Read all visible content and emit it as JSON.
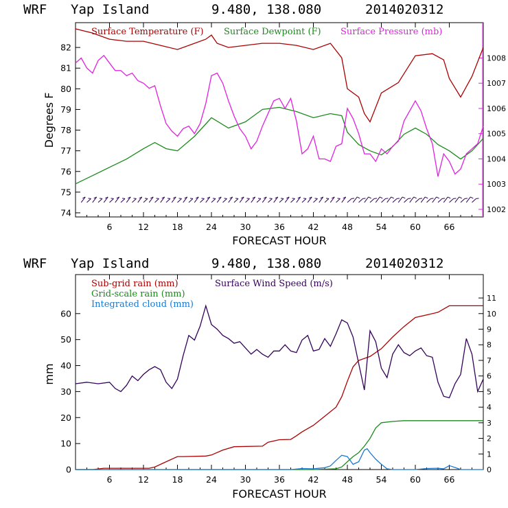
{
  "colors": {
    "temperature": "#aa0000",
    "dewpoint": "#1a8a1a",
    "pressure": "#e020e0",
    "wind": "#33005a",
    "subgrid": "#aa0000",
    "gridscale": "#1a8a1a",
    "cloud": "#1a78d0"
  },
  "chart_data": [
    {
      "type": "line",
      "title": {
        "model": "WRF",
        "location": "Yap Island",
        "coords": "9.480, 138.080",
        "date": "2014020312"
      },
      "xlabel": "FORECAST HOUR",
      "ylabel": "Degrees F",
      "x_ticks": [
        "6",
        "12",
        "18",
        "24",
        "30",
        "36",
        "42",
        "48",
        "54",
        "60",
        "66"
      ],
      "xlim": [
        0,
        72
      ],
      "y_ticks": [
        "74",
        "75",
        "76",
        "77",
        "78",
        "79",
        "80",
        "81",
        "82"
      ],
      "ylim": [
        73.8,
        83.2
      ],
      "y2_ticks": [
        "1002",
        "1003",
        "1004",
        "1005",
        "1006",
        "1007",
        "1008"
      ],
      "y2lim": [
        1001.7,
        1009.4
      ],
      "legend": [
        {
          "label": "Surface Temperature (F)",
          "color_key": "temperature"
        },
        {
          "label": "Surface Dewpoint (F)",
          "color_key": "dewpoint"
        },
        {
          "label": "Surface Pressure (mb)",
          "color_key": "pressure"
        }
      ],
      "series": [
        {
          "name": "Surface Temperature (F)",
          "axis": "left",
          "color_key": "temperature",
          "x": [
            0,
            3,
            6,
            9,
            12,
            15,
            18,
            21,
            23,
            24,
            25,
            27,
            30,
            33,
            36,
            39,
            42,
            45,
            47,
            48,
            50,
            51,
            52,
            54,
            57,
            60,
            63,
            65,
            66,
            68,
            70,
            72
          ],
          "y": [
            82.9,
            82.7,
            82.4,
            82.3,
            82.3,
            82.1,
            81.9,
            82.2,
            82.4,
            82.6,
            82.2,
            82.0,
            82.1,
            82.2,
            82.2,
            82.1,
            81.9,
            82.2,
            81.5,
            80.0,
            79.6,
            78.8,
            78.4,
            79.8,
            80.3,
            81.6,
            81.7,
            81.4,
            80.5,
            79.6,
            80.6,
            82.0
          ]
        },
        {
          "name": "Surface Dewpoint (F)",
          "axis": "left",
          "color_key": "dewpoint",
          "x": [
            0,
            3,
            6,
            9,
            12,
            14,
            16,
            18,
            21,
            24,
            27,
            30,
            33,
            36,
            39,
            42,
            45,
            47,
            48,
            50,
            52,
            54,
            56,
            58,
            60,
            62,
            64,
            66,
            68,
            70,
            72
          ],
          "y": [
            75.4,
            75.8,
            76.2,
            76.6,
            77.1,
            77.4,
            77.1,
            77.0,
            77.7,
            78.6,
            78.1,
            78.4,
            79.0,
            79.1,
            78.9,
            78.6,
            78.8,
            78.7,
            77.9,
            77.3,
            77.0,
            76.8,
            77.2,
            77.8,
            78.1,
            77.8,
            77.3,
            77.0,
            76.6,
            77.0,
            77.6
          ]
        },
        {
          "name": "Surface Pressure (mb)",
          "axis": "right",
          "color_key": "pressure",
          "x": [
            0,
            1,
            2,
            3,
            4,
            5,
            6,
            7,
            8,
            9,
            10,
            11,
            12,
            13,
            14,
            15,
            16,
            17,
            18,
            19,
            20,
            21,
            22,
            23,
            24,
            25,
            26,
            27,
            28,
            29,
            30,
            31,
            32,
            33,
            34,
            35,
            36,
            37,
            38,
            39,
            40,
            41,
            42,
            43,
            44,
            45,
            46,
            47,
            48,
            49,
            50,
            51,
            52,
            53,
            54,
            55,
            56,
            57,
            58,
            59,
            60,
            61,
            62,
            63,
            64,
            65,
            66,
            67,
            68,
            69,
            70,
            71,
            72
          ],
          "y": [
            1007.8,
            1008.0,
            1007.6,
            1007.4,
            1007.9,
            1008.1,
            1007.8,
            1007.5,
            1007.5,
            1007.3,
            1007.4,
            1007.1,
            1007.0,
            1006.8,
            1006.9,
            1006.1,
            1005.4,
            1005.1,
            1004.9,
            1005.2,
            1005.3,
            1005.0,
            1005.4,
            1006.2,
            1007.3,
            1007.4,
            1007.0,
            1006.3,
            1005.7,
            1005.2,
            1004.9,
            1004.4,
            1004.7,
            1005.3,
            1005.8,
            1006.3,
            1006.4,
            1006.0,
            1006.4,
            1005.5,
            1004.2,
            1004.4,
            1004.9,
            1004.0,
            1004.0,
            1003.9,
            1004.5,
            1004.6,
            1006.0,
            1005.6,
            1005.0,
            1004.2,
            1004.2,
            1003.9,
            1004.4,
            1004.2,
            1004.5,
            1004.7,
            1005.5,
            1005.9,
            1006.3,
            1005.9,
            1005.2,
            1004.6,
            1003.3,
            1004.2,
            1003.9,
            1003.4,
            1003.6,
            1004.2,
            1004.4,
            1004.6,
            1005.3
          ]
        }
      ],
      "wind_barbs": "along 74.5 line"
    },
    {
      "type": "line",
      "title": {
        "model": "WRF",
        "location": "Yap Island",
        "coords": "9.480, 138.080",
        "date": "2014020312"
      },
      "xlabel": "FORECAST HOUR",
      "ylabel": "mm",
      "x_ticks": [
        "6",
        "12",
        "18",
        "24",
        "30",
        "36",
        "42",
        "48",
        "54",
        "60",
        "66"
      ],
      "xlim": [
        0,
        72
      ],
      "y_ticks": [
        "0",
        "10",
        "20",
        "30",
        "40",
        "50",
        "60"
      ],
      "ylim": [
        0,
        75
      ],
      "y2_ticks": [
        "0",
        "1",
        "2",
        "3",
        "4",
        "5",
        "6",
        "7",
        "8",
        "9",
        "10",
        "11"
      ],
      "y2lim": [
        0,
        12.5
      ],
      "legend": [
        {
          "label": "Sub-grid rain (mm)",
          "color_key": "subgrid"
        },
        {
          "label": "Grid-scale rain (mm)",
          "color_key": "gridscale"
        },
        {
          "label": "Integrated cloud (mm)",
          "color_key": "cloud"
        },
        {
          "label": "Surface Wind Speed (m/s)",
          "color_key": "wind"
        }
      ],
      "series": [
        {
          "name": "Sub-grid rain (mm)",
          "axis": "left",
          "color_key": "subgrid",
          "x": [
            0,
            3,
            5,
            13,
            14,
            16,
            18,
            19,
            23,
            24,
            26,
            28,
            33,
            34,
            36,
            38,
            39,
            40,
            42,
            44,
            46,
            47,
            48,
            49,
            50,
            52,
            54,
            56,
            58,
            60,
            62,
            64,
            66,
            68,
            72
          ],
          "y": [
            0,
            0,
            0.5,
            0.5,
            1.0,
            3.0,
            5.0,
            5.0,
            5.2,
            5.6,
            7.5,
            8.8,
            9.0,
            10.5,
            11.5,
            11.6,
            13.0,
            14.5,
            17.0,
            20.5,
            24.0,
            28.0,
            34.0,
            39.5,
            42.0,
            43.5,
            46.5,
            51.0,
            55.0,
            58.5,
            59.5,
            60.5,
            63.0,
            63.0,
            63.0
          ]
        },
        {
          "name": "Grid-scale rain (mm)",
          "axis": "left",
          "color_key": "gridscale",
          "x": [
            0,
            42,
            46,
            47,
            48,
            49,
            50,
            51,
            52,
            53,
            54,
            56,
            58,
            60,
            72
          ],
          "y": [
            0,
            0,
            0.3,
            1.0,
            3.0,
            5.0,
            6.5,
            9.0,
            12.0,
            16.0,
            18.0,
            18.5,
            18.8,
            18.8,
            18.8
          ]
        },
        {
          "name": "Integrated cloud (mm)",
          "axis": "left",
          "color_key": "cloud",
          "x": [
            0,
            38,
            40,
            42,
            44,
            45,
            46,
            47,
            48,
            49,
            50,
            51,
            51.5,
            52,
            53,
            54,
            55,
            56,
            60,
            62,
            64,
            65,
            66,
            67,
            68,
            72
          ],
          "y": [
            0,
            0,
            0.4,
            0.3,
            0.7,
            1.4,
            3.5,
            5.5,
            5.0,
            2.0,
            3.0,
            7.5,
            8.0,
            6.5,
            4.0,
            2.0,
            0.3,
            0,
            0,
            0.4,
            0.5,
            0.3,
            1.5,
            0.8,
            0,
            0
          ]
        },
        {
          "name": "Surface Wind Speed (m/s)",
          "axis": "right",
          "color_key": "wind",
          "x": [
            0,
            2,
            4,
            6,
            7,
            8,
            9,
            10,
            11,
            12,
            13,
            14,
            15,
            16,
            17,
            18,
            19,
            20,
            21,
            22,
            23,
            24,
            25,
            26,
            27,
            28,
            29,
            30,
            31,
            32,
            33,
            34,
            35,
            36,
            37,
            38,
            39,
            40,
            41,
            42,
            43,
            44,
            45,
            46,
            47,
            48,
            49,
            50,
            51,
            52,
            53,
            54,
            55,
            56,
            57,
            58,
            59,
            60,
            61,
            62,
            63,
            64,
            65,
            66,
            67,
            68,
            69,
            70,
            71,
            72
          ],
          "y": [
            5.5,
            5.6,
            5.5,
            5.6,
            5.2,
            5.0,
            5.4,
            6.0,
            5.7,
            6.1,
            6.4,
            6.6,
            6.4,
            5.6,
            5.2,
            5.8,
            7.3,
            8.6,
            8.3,
            9.2,
            10.5,
            9.3,
            9.0,
            8.6,
            8.4,
            8.1,
            8.2,
            7.8,
            7.4,
            7.7,
            7.4,
            7.2,
            7.6,
            7.6,
            8.0,
            7.6,
            7.5,
            8.3,
            8.6,
            7.6,
            7.7,
            8.4,
            7.9,
            8.7,
            9.6,
            9.4,
            8.5,
            6.8,
            5.1,
            8.9,
            8.2,
            6.5,
            5.9,
            7.4,
            8.0,
            7.5,
            7.3,
            7.6,
            7.8,
            7.3,
            7.2,
            5.6,
            4.7,
            4.6,
            5.5,
            6.1,
            8.4,
            7.4,
            5.0,
            5.8
          ]
        }
      ]
    }
  ]
}
